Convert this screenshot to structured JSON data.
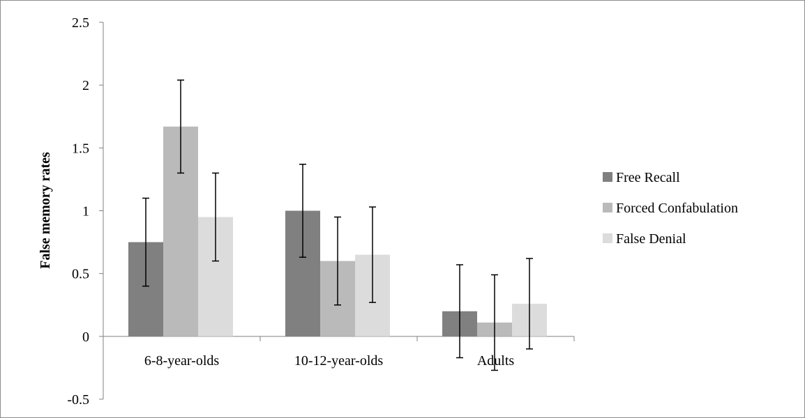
{
  "chart_data": {
    "type": "bar",
    "ylabel": "False memory rates",
    "xlabel": "",
    "ylim": [
      -0.5,
      2.5
    ],
    "yticks": [
      2.5,
      2,
      1.5,
      1,
      0.5,
      0,
      -0.5
    ],
    "ytick_labels": [
      "2.5",
      "2",
      "1.5",
      "1",
      "0.5",
      "0",
      "-0.5"
    ],
    "categories": [
      "6-8-year-olds",
      "10-12-year-olds",
      "Adults"
    ],
    "series": [
      {
        "name": "Free Recall",
        "color": "#808080",
        "values": [
          0.75,
          1.0,
          0.2
        ],
        "errors": [
          0.35,
          0.37,
          0.37
        ]
      },
      {
        "name": "Forced Confabulation",
        "color": "#bababa",
        "values": [
          1.67,
          0.6,
          0.11
        ],
        "errors": [
          0.37,
          0.35,
          0.38
        ]
      },
      {
        "name": "False Denial",
        "color": "#dcdcdc",
        "values": [
          0.95,
          0.65,
          0.26
        ],
        "errors": [
          0.35,
          0.38,
          0.36
        ]
      }
    ],
    "grid": false,
    "legend_position": "right"
  }
}
